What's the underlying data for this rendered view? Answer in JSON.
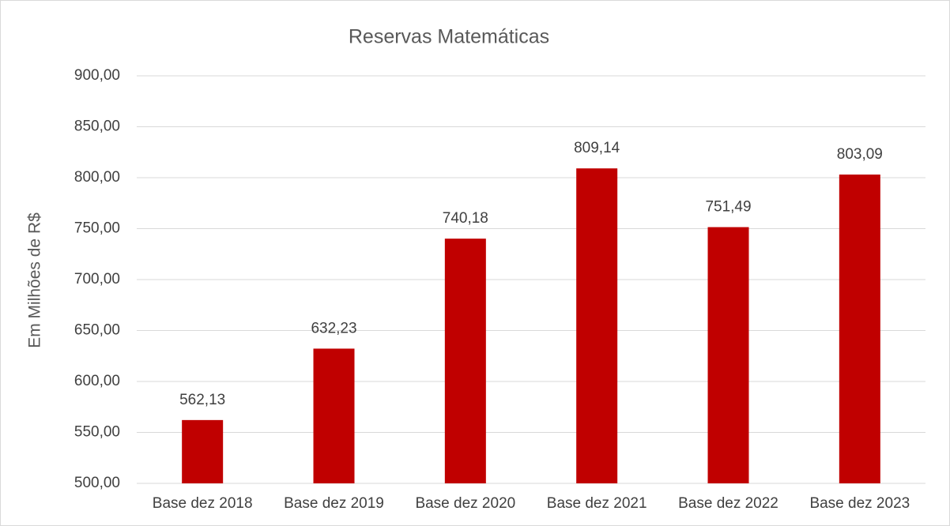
{
  "chart_data": {
    "type": "bar",
    "title": "Reservas Matemáticas",
    "y_label": "Em Milhões de R$",
    "categories": [
      "Base dez 2018",
      "Base dez 2019",
      "Base dez 2020",
      "Base dez 2021",
      "Base dez 2022",
      "Base dez 2023"
    ],
    "values": [
      562.13,
      632.23,
      740.18,
      809.14,
      751.49,
      803.09
    ],
    "value_labels": [
      "562,13",
      "632,23",
      "740,18",
      "809,14",
      "751,49",
      "803,09"
    ],
    "color": "#c00000",
    "ylim": [
      500,
      900
    ],
    "yticks": [
      {
        "value": 500,
        "label": "500,00"
      },
      {
        "value": 550,
        "label": "550,00"
      },
      {
        "value": 600,
        "label": "600,00"
      },
      {
        "value": 650,
        "label": "650,00"
      },
      {
        "value": 700,
        "label": "700,00"
      },
      {
        "value": 750,
        "label": "750,00"
      },
      {
        "value": 800,
        "label": "800,00"
      },
      {
        "value": 850,
        "label": "850,00"
      },
      {
        "value": 900,
        "label": "900,00"
      }
    ],
    "grid": true
  }
}
